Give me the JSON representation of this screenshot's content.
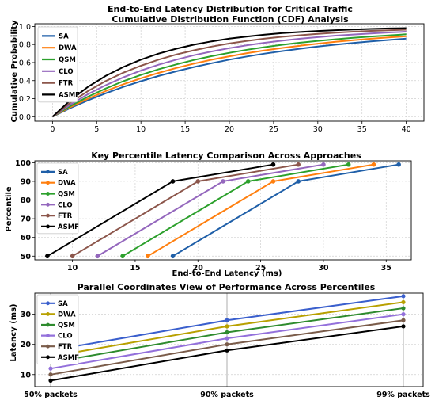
{
  "colors": {
    "SA": "#1f5fa8",
    "DWA": "#ff7f0e",
    "QSM": "#2ca02c",
    "CLO": "#9467bd",
    "FTR": "#8c564b",
    "ASMF": "#000000"
  },
  "chart_data": [
    {
      "type": "line",
      "title": "End-to-End Latency Distribution for Critical Traffic",
      "subtitle": "Cumulative Distribution Function (CDF) Analysis",
      "xlabel": "",
      "ylabel": "Cumulative Probability",
      "xlim": [
        -2,
        42
      ],
      "ylim": [
        -0.05,
        1.03
      ],
      "xticks": [
        0,
        5,
        10,
        15,
        20,
        25,
        30,
        35,
        40
      ],
      "yticks": [
        0.0,
        0.2,
        0.4,
        0.6,
        0.8,
        1.0
      ],
      "legend": "top-left",
      "grid": true,
      "x": [
        0,
        2,
        4,
        6,
        8,
        10,
        12,
        14,
        16,
        18,
        20,
        22,
        24,
        26,
        28,
        30,
        32,
        34,
        36,
        38,
        40
      ],
      "series": [
        {
          "name": "SA",
          "values": [
            0,
            0.095,
            0.181,
            0.259,
            0.33,
            0.393,
            0.451,
            0.503,
            0.551,
            0.593,
            0.632,
            0.667,
            0.699,
            0.727,
            0.753,
            0.777,
            0.798,
            0.817,
            0.835,
            0.85,
            0.865
          ]
        },
        {
          "name": "DWA",
          "values": [
            0,
            0.105,
            0.199,
            0.284,
            0.359,
            0.426,
            0.486,
            0.54,
            0.588,
            0.631,
            0.669,
            0.704,
            0.735,
            0.762,
            0.787,
            0.81,
            0.83,
            0.848,
            0.864,
            0.878,
            0.891
          ]
        },
        {
          "name": "QSM",
          "values": [
            0,
            0.117,
            0.221,
            0.312,
            0.393,
            0.463,
            0.526,
            0.58,
            0.629,
            0.671,
            0.708,
            0.742,
            0.771,
            0.797,
            0.82,
            0.84,
            0.858,
            0.874,
            0.889,
            0.901,
            0.913
          ]
        },
        {
          "name": "CLO",
          "values": [
            0,
            0.133,
            0.249,
            0.349,
            0.436,
            0.511,
            0.576,
            0.632,
            0.681,
            0.723,
            0.76,
            0.792,
            0.819,
            0.843,
            0.864,
            0.882,
            0.898,
            0.911,
            0.923,
            0.933,
            0.942
          ]
        },
        {
          "name": "FTR",
          "values": [
            0,
            0.154,
            0.284,
            0.394,
            0.487,
            0.565,
            0.632,
            0.689,
            0.736,
            0.777,
            0.811,
            0.84,
            0.865,
            0.886,
            0.903,
            0.918,
            0.931,
            0.942,
            0.951,
            0.958,
            0.964
          ]
        },
        {
          "name": "ASMF",
          "values": [
            0,
            0.181,
            0.33,
            0.451,
            0.551,
            0.632,
            0.699,
            0.753,
            0.798,
            0.835,
            0.865,
            0.889,
            0.909,
            0.926,
            0.939,
            0.95,
            0.959,
            0.967,
            0.973,
            0.978,
            0.982
          ]
        }
      ]
    },
    {
      "type": "line",
      "title": "Key Percentile Latency Comparison Across Approaches",
      "xlabel": "End-to-End Latency (ms)",
      "ylabel": "Percentile",
      "xlim": [
        7,
        37
      ],
      "ylim": [
        48,
        101
      ],
      "xticks": [
        10,
        15,
        20,
        25,
        30,
        35
      ],
      "yticks": [
        50,
        60,
        70,
        80,
        90,
        100
      ],
      "legend": "top-left",
      "grid": true,
      "percentiles": [
        50,
        90,
        99
      ],
      "series": [
        {
          "name": "SA",
          "latency": [
            18,
            28,
            36
          ]
        },
        {
          "name": "DWA",
          "latency": [
            16,
            26,
            34
          ]
        },
        {
          "name": "QSM",
          "latency": [
            14,
            24,
            32
          ]
        },
        {
          "name": "CLO",
          "latency": [
            12,
            22,
            30
          ]
        },
        {
          "name": "FTR",
          "latency": [
            10,
            20,
            28
          ]
        },
        {
          "name": "ASMF",
          "latency": [
            8,
            18,
            26
          ]
        }
      ]
    },
    {
      "type": "line",
      "title": "Parallel Coordinates View of Performance Across Percentiles",
      "xlabel": "",
      "ylabel": "Latency (ms)",
      "categories": [
        "50% packets",
        "90% packets",
        "99% packets"
      ],
      "ylim": [
        6,
        37
      ],
      "yticks": [
        10,
        20,
        30
      ],
      "legend": "top-left",
      "grid": true,
      "series": [
        {
          "name": "SA",
          "values": [
            18,
            28,
            36
          ],
          "color": "#3a5fcd"
        },
        {
          "name": "DWA",
          "values": [
            16,
            26,
            34
          ],
          "color": "#b8a000"
        },
        {
          "name": "QSM",
          "values": [
            14,
            24,
            32
          ],
          "color": "#2e8b2e"
        },
        {
          "name": "CLO",
          "values": [
            12,
            22,
            30
          ],
          "color": "#9370db"
        },
        {
          "name": "FTR",
          "values": [
            10,
            20,
            28
          ],
          "color": "#7a5c4a"
        },
        {
          "name": "ASMF",
          "values": [
            8,
            18,
            26
          ],
          "color": "#000000"
        }
      ]
    }
  ]
}
